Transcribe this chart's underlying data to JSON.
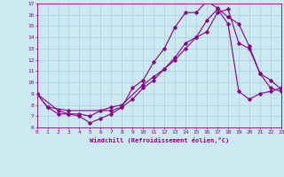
{
  "xlabel": "Windchill (Refroidissement éolien,°C)",
  "xlim": [
    0,
    23
  ],
  "ylim": [
    6,
    17
  ],
  "yticks": [
    6,
    7,
    8,
    9,
    10,
    11,
    12,
    13,
    14,
    15,
    16,
    17
  ],
  "xticks": [
    0,
    1,
    2,
    3,
    4,
    5,
    6,
    7,
    8,
    9,
    10,
    11,
    12,
    13,
    14,
    15,
    16,
    17,
    18,
    19,
    20,
    21,
    22,
    23
  ],
  "bg_color": "#cce8f0",
  "grid_color": "#99cce0",
  "line_color": "#880088",
  "line1_x": [
    0,
    1,
    2,
    3,
    4,
    5,
    6,
    7,
    8,
    9,
    10,
    11,
    12,
    13,
    14,
    15,
    16,
    17,
    18,
    19,
    20,
    21,
    22,
    23
  ],
  "line1_y": [
    9,
    7.8,
    7.2,
    7.2,
    7.0,
    6.4,
    6.8,
    7.2,
    7.8,
    9.5,
    10.2,
    11.8,
    13.0,
    14.9,
    16.2,
    16.2,
    17.2,
    16.6,
    15.8,
    15.2,
    13.2,
    10.8,
    10.2,
    9.4
  ],
  "line2_x": [
    0,
    2,
    3,
    4,
    5,
    6,
    7,
    8,
    10,
    11,
    12,
    13,
    14,
    15,
    16,
    17,
    18,
    19,
    20,
    21,
    22,
    23
  ],
  "line2_y": [
    9,
    7.5,
    7.2,
    7.2,
    7.0,
    7.5,
    7.8,
    8.0,
    9.8,
    10.5,
    11.2,
    12.2,
    13.5,
    14.0,
    14.5,
    16.2,
    16.5,
    13.5,
    13.0,
    10.8,
    9.5,
    9.2
  ],
  "line3_x": [
    0,
    1,
    3,
    7,
    8,
    9,
    10,
    11,
    12,
    13,
    14,
    15,
    16,
    17,
    18,
    19,
    20,
    21,
    22,
    23
  ],
  "line3_y": [
    9,
    7.8,
    7.5,
    7.5,
    7.8,
    8.5,
    9.5,
    10.2,
    11.2,
    12.0,
    13.0,
    14.0,
    15.5,
    16.5,
    15.2,
    9.2,
    8.5,
    9.0,
    9.2,
    9.5
  ]
}
